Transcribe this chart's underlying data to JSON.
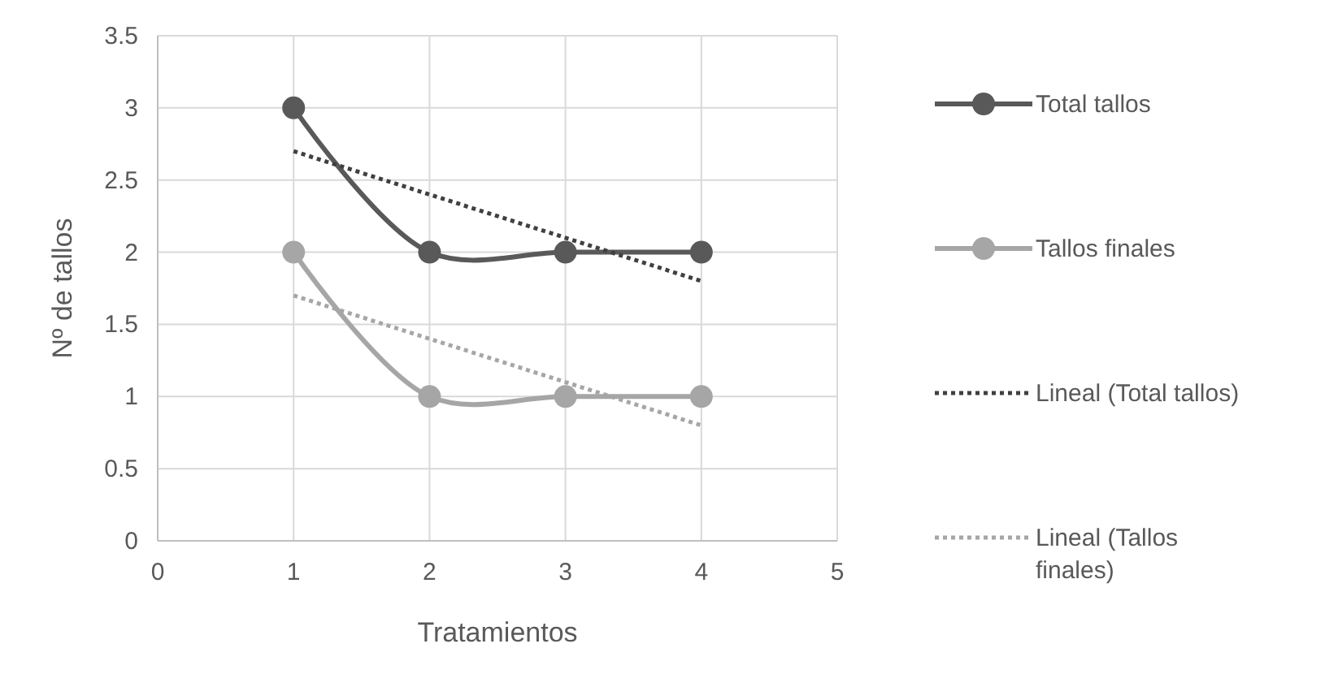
{
  "chart_data": {
    "type": "line",
    "xlabel": "Tratamientos",
    "ylabel": "Nº de tallos",
    "xlim": [
      0,
      5
    ],
    "xticks": [
      0,
      1,
      2,
      3,
      4,
      5
    ],
    "ylim": [
      0,
      3.5
    ],
    "yticks": [
      0,
      0.5,
      1,
      1.5,
      2,
      2.5,
      3,
      3.5
    ],
    "grid": true,
    "legend": "right",
    "marker": "circle",
    "line_style": "solid",
    "x": [
      1,
      2,
      3,
      4
    ],
    "series": [
      {
        "name": "Total tallos",
        "color": "#595959",
        "values": [
          3,
          2,
          2,
          2
        ]
      },
      {
        "name": "Tallos finales",
        "color": "#a6a6a6",
        "values": [
          2,
          1,
          1,
          1
        ]
      },
      {
        "name": "Lineal (Total tallos)",
        "type": "line",
        "color": "#404040",
        "x": [
          1,
          2,
          3,
          4
        ],
        "values": [
          2.7,
          2.4,
          2.1,
          1.8
        ],
        "marker": "none",
        "line_style": "dotted"
      },
      {
        "name": "Lineal (Tallos finales)",
        "type": "line",
        "color": "#a6a6a6",
        "x": [
          1,
          2,
          3,
          4
        ],
        "values": [
          1.7,
          1.4,
          1.1,
          0.8
        ],
        "marker": "none",
        "line_style": "dotted"
      }
    ]
  }
}
